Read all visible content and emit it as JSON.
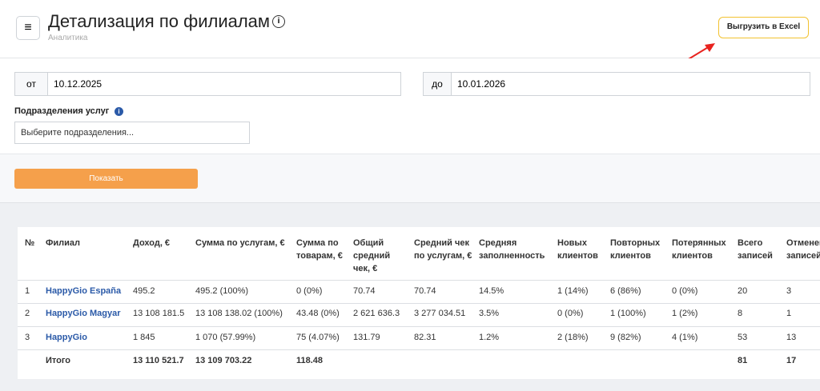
{
  "header": {
    "title": "Детализация по филиалам",
    "subtitle": "Аналитика",
    "export_button": "Выгрузить в Excel"
  },
  "filters": {
    "from_label": "от",
    "from_value": "10.12.2025",
    "to_label": "до",
    "to_value": "10.01.2026",
    "divisions_label": "Подразделения услуг",
    "divisions_placeholder": "Выберите подразделения...",
    "show_button": "Показать"
  },
  "table": {
    "columns": [
      "№",
      "Филиал",
      "Доход, €",
      "Сумма по услугам, €",
      "Сумма по товарам, €",
      "Общий средний чек, €",
      "Средний чек по услугам, €",
      "Средняя заполненность",
      "Новых клиентов",
      "Повторных клиентов",
      "Потерянных клиентов",
      "Всего записей",
      "Отменено записей"
    ],
    "rows": [
      [
        "1",
        "HappyGio España",
        "495.2",
        "495.2 (100%)",
        "0 (0%)",
        "70.74",
        "70.74",
        "14.5%",
        "1 (14%)",
        "6 (86%)",
        "0 (0%)",
        "20",
        "3"
      ],
      [
        "2",
        "HappyGio Magyar",
        "13 108 181.5",
        "13 108 138.02 (100%)",
        "43.48 (0%)",
        "2 621 636.3",
        "3 277 034.51",
        "3.5%",
        "0 (0%)",
        "1 (100%)",
        "1 (2%)",
        "8",
        "1"
      ],
      [
        "3",
        "HappyGio",
        "1 845",
        "1 070 (57.99%)",
        "75 (4.07%)",
        "131.79",
        "82.31",
        "1.2%",
        "2 (18%)",
        "9 (82%)",
        "4 (1%)",
        "53",
        "13"
      ]
    ],
    "total": {
      "label": "Итого",
      "income": "13 110 521.7",
      "services": "13 109 703.22",
      "goods": "118.48",
      "records": "81",
      "cancelled": "17"
    }
  }
}
